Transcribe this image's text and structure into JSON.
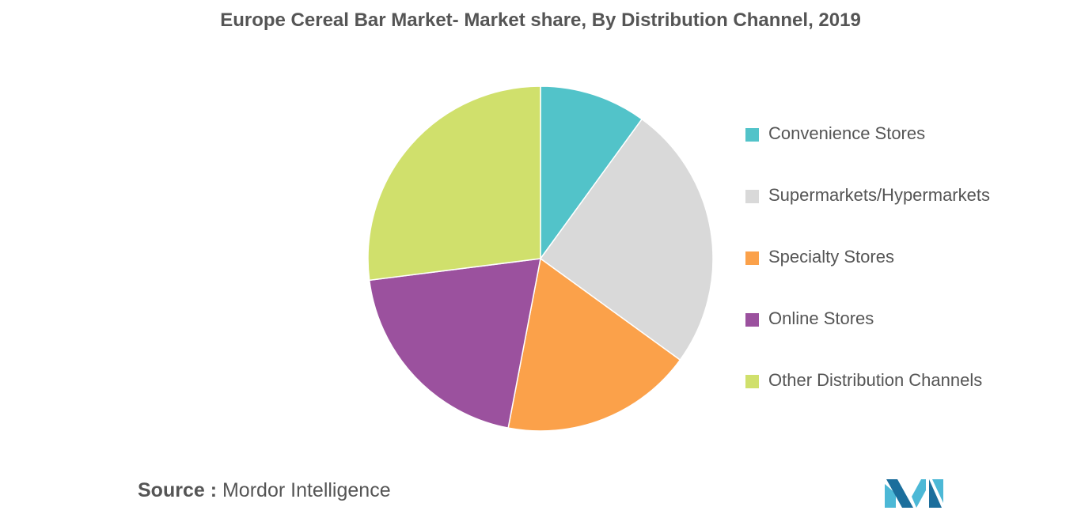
{
  "chart_data": {
    "type": "pie",
    "title": "Europe Cereal Bar Market- Market share, By Distribution Channel, 2019",
    "categories": [
      "Convenience Stores",
      "Supermarkets/Hypermarkets",
      "Specialty Stores",
      "Online Stores",
      "Other Distribution Channels"
    ],
    "values": [
      10,
      25,
      18,
      20,
      27
    ],
    "colors": [
      "#52c3c9",
      "#d9d9d9",
      "#fba14a",
      "#9b519e",
      "#d0e06c"
    ],
    "legend_position": "right"
  },
  "source": {
    "label": "Source :",
    "text": "Mordor Intelligence"
  },
  "logo": {
    "name": "mordor-intelligence-logo",
    "colors": [
      "#4cb8d6",
      "#1b6e9c"
    ]
  }
}
